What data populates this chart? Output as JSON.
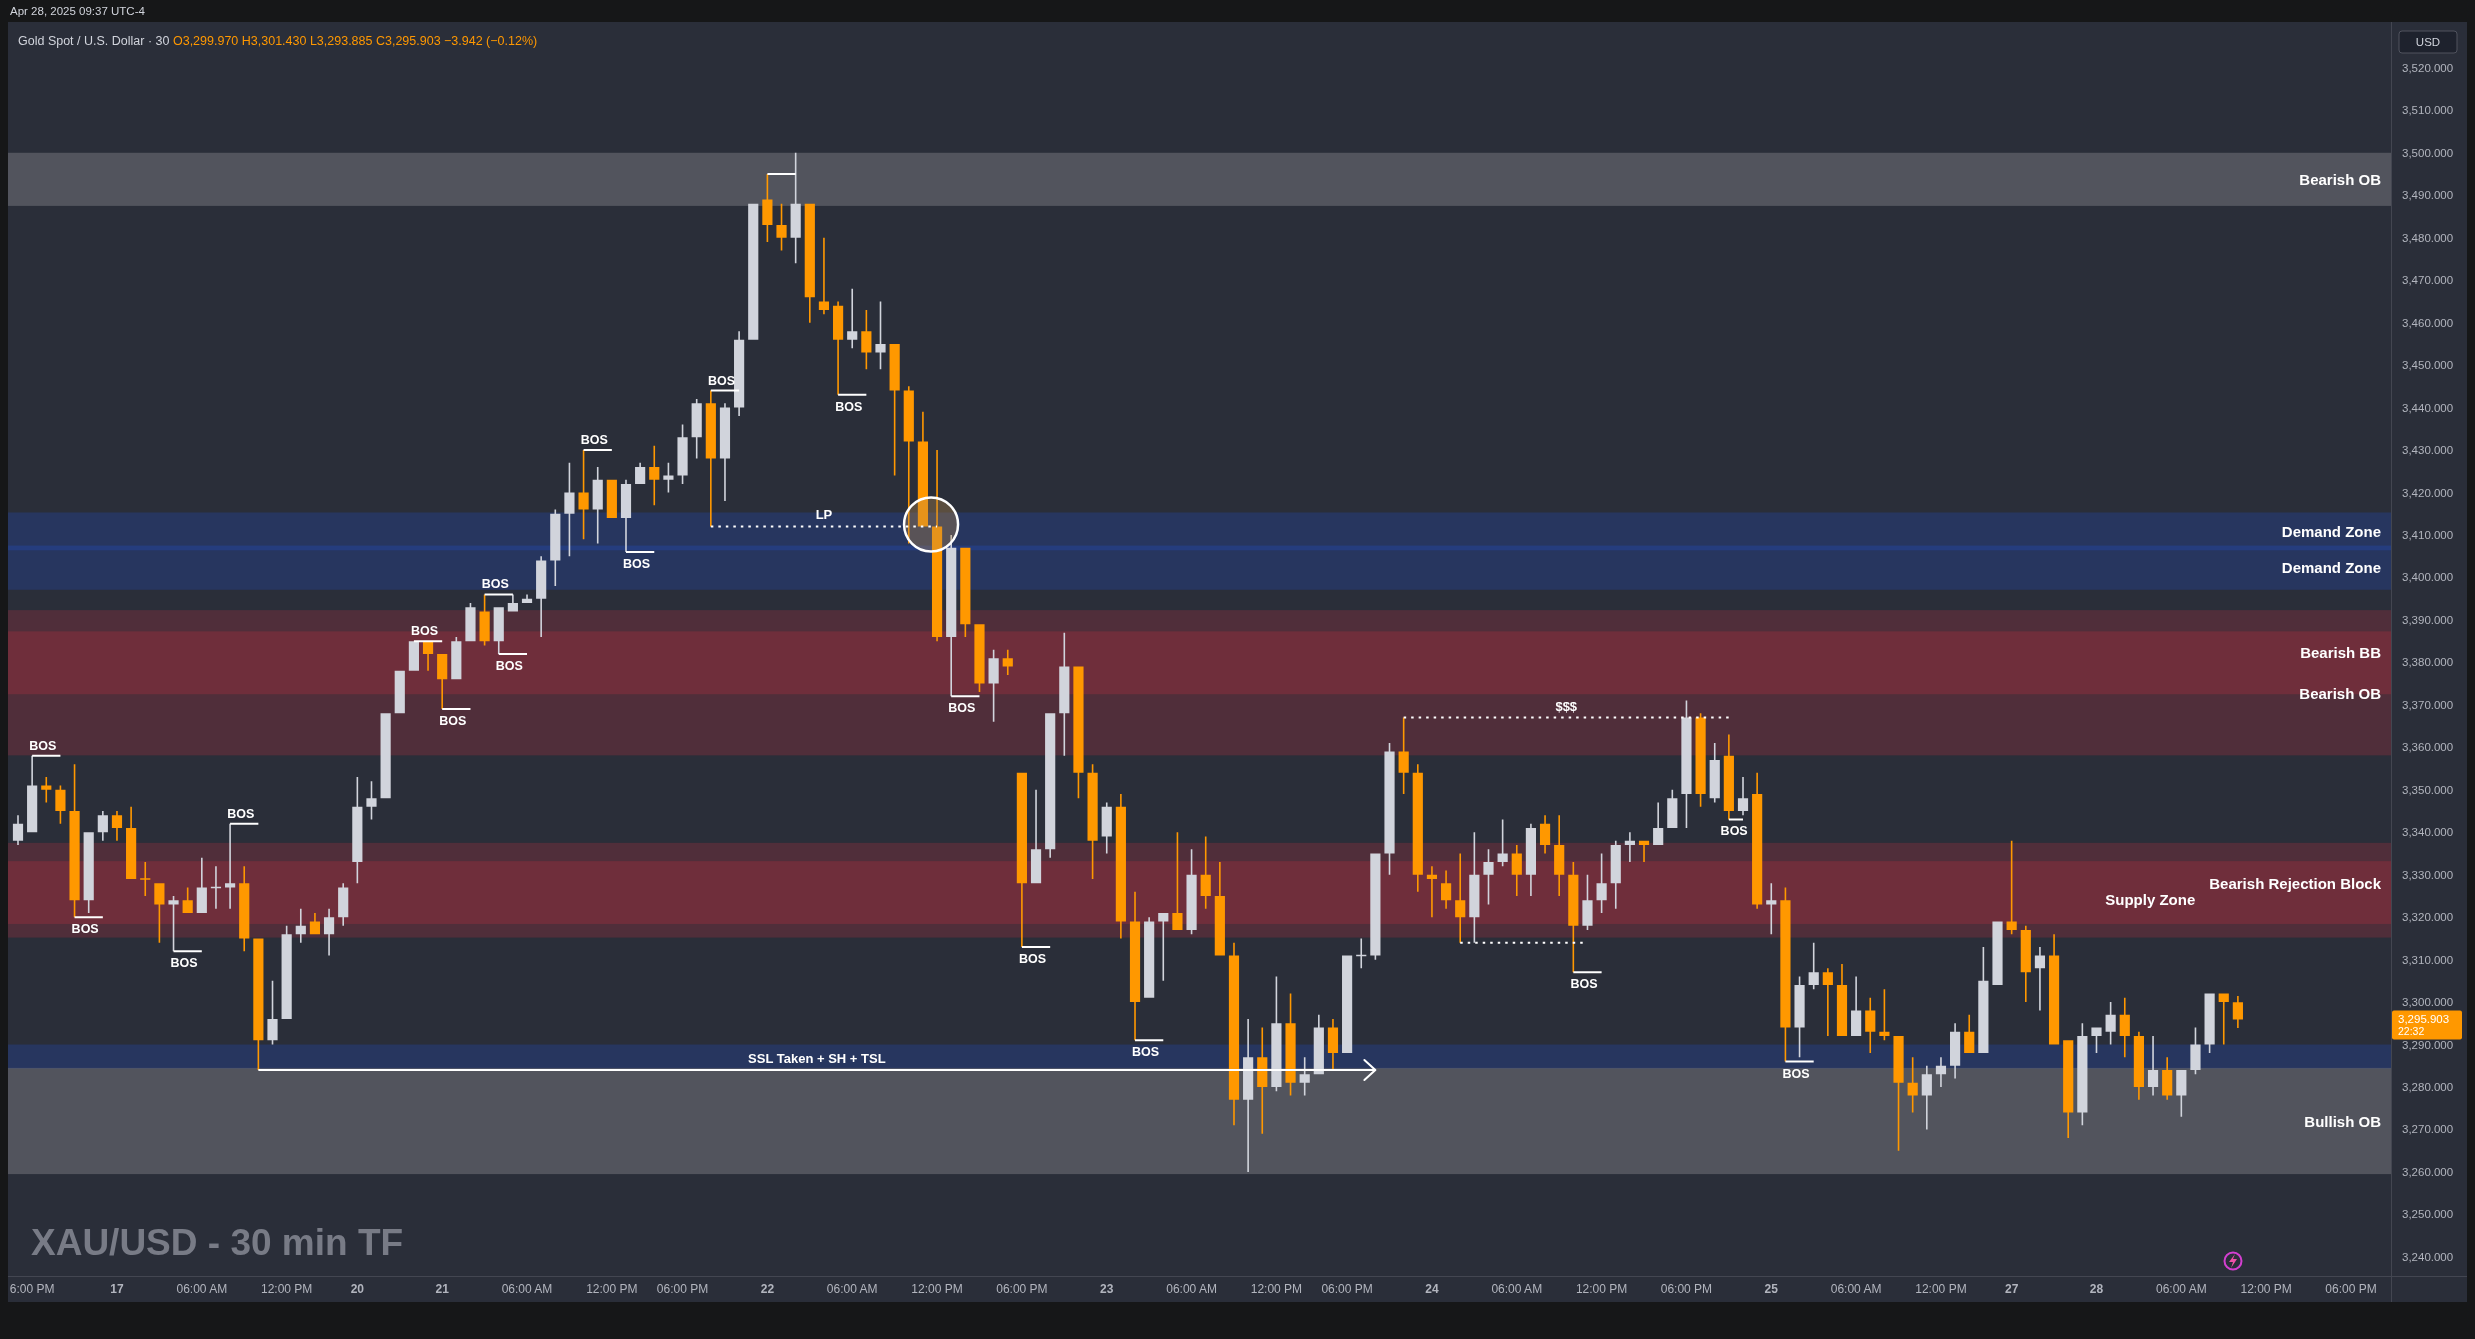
{
  "chart_data": {
    "type": "candlestick",
    "title": "XAU/USD - 30 min TF",
    "subtitle": "Gold Spot / U.S. Dollar · 30 O3,299.970 H3,301.430 L3,293.885 C3,295.903 −3.942 (−0.12%)",
    "ylabel": "USD",
    "categories": [
      null,
      "6:00 PM",
      null,
      null,
      null,
      null,
      null,
      "17",
      null,
      null,
      null,
      null,
      null,
      "06:00 AM",
      null,
      null,
      null,
      null,
      null,
      "12:00 PM",
      null,
      null,
      null,
      null,
      "20",
      null,
      null,
      null,
      null,
      null,
      "21",
      null,
      null,
      null,
      null,
      null,
      "06:00 AM",
      null,
      null,
      null,
      null,
      null,
      "12:00 PM",
      null,
      null,
      null,
      null,
      "06:00 PM",
      null,
      null,
      null,
      null,
      null,
      "22",
      null,
      null,
      null,
      null,
      null,
      "06:00 AM",
      null,
      null,
      null,
      null,
      null,
      "12:00 PM",
      null,
      null,
      null,
      null,
      null,
      "06:00 PM",
      null,
      null,
      null,
      null,
      null,
      "23",
      null,
      null,
      null,
      null,
      null,
      "06:00 AM",
      null,
      null,
      null,
      null,
      null,
      "12:00 PM",
      null,
      null,
      null,
      null,
      "06:00 PM",
      null,
      null,
      null,
      null,
      null,
      "24",
      null,
      null,
      null,
      null,
      null,
      "06:00 AM",
      null,
      null,
      null,
      null,
      null,
      "12:00 PM",
      null,
      null,
      null,
      null,
      null,
      "06:00 PM",
      null,
      null,
      null,
      null,
      null,
      "25",
      null,
      null,
      null,
      null,
      null,
      "06:00 AM",
      null,
      null,
      null,
      null,
      null,
      "12:00 PM",
      null,
      null,
      null,
      null,
      "27",
      null,
      null,
      null,
      null,
      null,
      "28",
      null,
      null,
      null,
      null,
      null,
      "06:00 AM",
      null,
      null,
      null,
      null,
      null,
      "12:00 PM",
      null,
      null,
      null,
      null,
      null,
      "06:00 PM"
    ],
    "ohlc": [
      [
        3338,
        3344,
        3337,
        3342
      ],
      [
        3340,
        3358,
        3340,
        3351
      ],
      [
        3351,
        3353,
        3347,
        3350
      ],
      [
        3350,
        3351,
        3342,
        3345
      ],
      [
        3345,
        3356,
        3320,
        3324
      ],
      [
        3324,
        3340,
        3321,
        3340
      ],
      [
        3340,
        3345,
        3338,
        3344
      ],
      [
        3344,
        3345,
        3338,
        3341
      ],
      [
        3341,
        3346,
        3329,
        3329
      ],
      [
        3329,
        3333,
        3325,
        3329
      ],
      [
        3328,
        3328,
        3314,
        3323
      ],
      [
        3323,
        3325,
        3312,
        3324
      ],
      [
        3324,
        3327,
        3321,
        3321
      ],
      [
        3321,
        3334,
        3321,
        3327
      ],
      [
        3327,
        3332,
        3322,
        3327
      ],
      [
        3327,
        3342,
        3322,
        3328
      ],
      [
        3328,
        3332,
        3312,
        3315
      ],
      [
        3315,
        3315,
        3284,
        3291
      ],
      [
        3291,
        3305,
        3290,
        3296
      ],
      [
        3296,
        3318,
        3296,
        3316
      ],
      [
        3316,
        3322,
        3314,
        3318
      ],
      [
        3319,
        3321,
        3316,
        3316
      ],
      [
        3316,
        3322,
        3311,
        3320
      ],
      [
        3320,
        3328,
        3318,
        3327
      ],
      [
        3333,
        3353,
        3328,
        3346
      ],
      [
        3346,
        3352,
        3343,
        3348
      ],
      [
        3348,
        3368,
        3348,
        3368
      ],
      [
        3368,
        3378,
        3368,
        3378
      ],
      [
        3378,
        3385,
        3378,
        3385
      ],
      [
        3385,
        3385,
        3378,
        3382
      ],
      [
        3382,
        3382,
        3369,
        3376
      ],
      [
        3376,
        3386,
        3376,
        3385
      ],
      [
        3385,
        3394,
        3385,
        3393
      ],
      [
        3392,
        3396,
        3384,
        3385
      ],
      [
        3385,
        3393,
        3382,
        3393
      ],
      [
        3392,
        3396,
        3392,
        3394
      ],
      [
        3394,
        3396,
        3394,
        3395
      ],
      [
        3395,
        3405,
        3386,
        3404
      ],
      [
        3404,
        3416,
        3398,
        3415
      ],
      [
        3415,
        3427,
        3405,
        3420
      ],
      [
        3420,
        3430,
        3409,
        3416
      ],
      [
        3416,
        3426,
        3408,
        3423
      ],
      [
        3423,
        3423,
        3414,
        3414
      ],
      [
        3414,
        3423,
        3406,
        3422
      ],
      [
        3422,
        3427,
        3422,
        3426
      ],
      [
        3426,
        3431,
        3417,
        3423
      ],
      [
        3423,
        3427,
        3420,
        3424
      ],
      [
        3424,
        3436,
        3422,
        3433
      ],
      [
        3433,
        3442,
        3428,
        3441
      ],
      [
        3441,
        3444,
        3412,
        3428
      ],
      [
        3428,
        3441,
        3418,
        3440
      ],
      [
        3440,
        3458,
        3438,
        3456
      ],
      [
        3456,
        3488,
        3456,
        3488
      ],
      [
        3489,
        3495,
        3479,
        3483
      ],
      [
        3483,
        3488,
        3477,
        3480
      ],
      [
        3480,
        3500,
        3474,
        3488
      ],
      [
        3488,
        3488,
        3460,
        3466
      ],
      [
        3465,
        3480,
        3462,
        3463
      ],
      [
        3464,
        3465,
        3443,
        3456
      ],
      [
        3456,
        3468,
        3454,
        3458
      ],
      [
        3458,
        3463,
        3449,
        3453
      ],
      [
        3453,
        3465,
        3449,
        3455
      ],
      [
        3455,
        3455,
        3424,
        3444
      ],
      [
        3444,
        3445,
        3408,
        3432
      ],
      [
        3432,
        3439,
        3412,
        3412
      ],
      [
        3412,
        3430,
        3385,
        3386
      ],
      [
        3386,
        3410,
        3372,
        3407
      ],
      [
        3407,
        3407,
        3386,
        3389
      ],
      [
        3389,
        3389,
        3373,
        3375
      ],
      [
        3375,
        3383,
        3366,
        3381
      ],
      [
        3381,
        3383,
        3377,
        3379
      ],
      [
        3354,
        3354,
        3313,
        3328
      ],
      [
        3328,
        3350,
        3328,
        3336
      ],
      [
        3336,
        3368,
        3334,
        3368
      ],
      [
        3368,
        3387,
        3358,
        3379
      ],
      [
        3379,
        3379,
        3348,
        3354
      ],
      [
        3354,
        3356,
        3329,
        3338
      ],
      [
        3339,
        3347,
        3335,
        3346
      ],
      [
        3346,
        3349,
        3315,
        3319
      ],
      [
        3319,
        3326,
        3291,
        3300
      ],
      [
        3301,
        3320,
        3301,
        3319
      ],
      [
        3319,
        3321,
        3305,
        3321
      ],
      [
        3321,
        3340,
        3317,
        3317
      ],
      [
        3317,
        3336,
        3316,
        3330
      ],
      [
        3330,
        3339,
        3322,
        3325
      ],
      [
        3325,
        3333,
        3311,
        3311
      ],
      [
        3311,
        3314,
        3271,
        3277
      ],
      [
        3277,
        3296,
        3260,
        3287
      ],
      [
        3287,
        3294,
        3269,
        3280
      ],
      [
        3280,
        3306,
        3279,
        3295
      ],
      [
        3295,
        3302,
        3278,
        3281
      ],
      [
        3281,
        3287,
        3278,
        3283
      ],
      [
        3283,
        3297,
        3283,
        3294
      ],
      [
        3294,
        3296,
        3284,
        3288
      ],
      [
        3288,
        3311,
        3288,
        3311
      ],
      [
        3311,
        3315,
        3308,
        3311
      ],
      [
        3311,
        3335,
        3310,
        3335
      ],
      [
        3335,
        3361,
        3330,
        3359
      ],
      [
        3359,
        3367,
        3349,
        3354
      ],
      [
        3354,
        3356,
        3326,
        3330
      ],
      [
        3330,
        3332,
        3320,
        3329
      ],
      [
        3328,
        3331,
        3322,
        3324
      ],
      [
        3324,
        3335,
        3314,
        3320
      ],
      [
        3320,
        3340,
        3314,
        3330
      ],
      [
        3330,
        3336,
        3323,
        3333
      ],
      [
        3333,
        3343,
        3332,
        3335
      ],
      [
        3335,
        3337,
        3325,
        3330
      ],
      [
        3330,
        3342,
        3325,
        3341
      ],
      [
        3342,
        3344,
        3335,
        3337
      ],
      [
        3337,
        3344,
        3325,
        3330
      ],
      [
        3330,
        3333,
        3307,
        3318
      ],
      [
        3318,
        3330,
        3317,
        3324
      ],
      [
        3324,
        3335,
        3321,
        3328
      ],
      [
        3328,
        3338,
        3322,
        3337
      ],
      [
        3337,
        3340,
        3333,
        3338
      ],
      [
        3338,
        3338,
        3333,
        3337
      ],
      [
        3337,
        3347,
        3337,
        3341
      ],
      [
        3341,
        3350,
        3341,
        3348
      ],
      [
        3349,
        3371,
        3341,
        3367
      ],
      [
        3367,
        3368,
        3346,
        3349
      ],
      [
        3348,
        3361,
        3347,
        3357
      ],
      [
        3358,
        3363,
        3343,
        3345
      ],
      [
        3345,
        3353,
        3344,
        3348
      ],
      [
        3349,
        3354,
        3322,
        3323
      ],
      [
        3323,
        3328,
        3316,
        3324
      ],
      [
        3324,
        3327,
        3286,
        3294
      ],
      [
        3294,
        3306,
        3287,
        3304
      ],
      [
        3304,
        3314,
        3303,
        3307
      ],
      [
        3307,
        3308,
        3292,
        3304
      ],
      [
        3304,
        3309,
        3292,
        3292
      ],
      [
        3292,
        3306,
        3292,
        3298
      ],
      [
        3298,
        3301,
        3288,
        3293
      ],
      [
        3293,
        3303,
        3291,
        3292
      ],
      [
        3292,
        3292,
        3265,
        3281
      ],
      [
        3281,
        3287,
        3274,
        3278
      ],
      [
        3278,
        3285,
        3270,
        3283
      ],
      [
        3283,
        3287,
        3280,
        3285
      ],
      [
        3285,
        3295,
        3282,
        3293
      ],
      [
        3293,
        3297,
        3288,
        3288
      ],
      [
        3288,
        3313,
        3288,
        3305
      ],
      [
        3304,
        3319,
        3304,
        3319
      ],
      [
        3319,
        3338,
        3316,
        3317
      ],
      [
        3317,
        3318,
        3300,
        3307
      ],
      [
        3308,
        3313,
        3298,
        3311
      ],
      [
        3311,
        3316,
        3290,
        3290
      ],
      [
        3291,
        3291,
        3268,
        3274
      ],
      [
        3274,
        3295,
        3271,
        3292
      ],
      [
        3292,
        3294,
        3288,
        3294
      ],
      [
        3293,
        3300,
        3290,
        3297
      ],
      [
        3297,
        3301,
        3287,
        3292
      ],
      [
        3292,
        3293,
        3277,
        3280
      ],
      [
        3280,
        3292,
        3278,
        3284
      ],
      [
        3284,
        3287,
        3277,
        3278
      ],
      [
        3278,
        3284,
        3273,
        3284
      ],
      [
        3284,
        3294,
        3283,
        3290
      ],
      [
        3290,
        3302,
        3288,
        3302
      ],
      [
        3302,
        3302,
        3290,
        3300
      ],
      [
        3299.97,
        3301.43,
        3293.885,
        3295.903
      ],
      null,
      null,
      null,
      null,
      null,
      null,
      null,
      null
    ],
    "colors": [
      "#d1d4dc",
      "#d1d4dc",
      "#ff9800",
      "#ff9800",
      "#ff9800",
      "#d1d4dc",
      "#d1d4dc",
      "#ff9800",
      "#ff9800",
      "#ff9800",
      "#ff9800",
      "#d1d4dc",
      "#ff9800",
      "#d1d4dc",
      "#d1d4dc",
      "#d1d4dc",
      "#ff9800",
      "#ff9800",
      "#d1d4dc",
      "#d1d4dc",
      "#d1d4dc",
      "#ff9800",
      "#d1d4dc",
      "#d1d4dc",
      "#d1d4dc",
      "#d1d4dc",
      "#d1d4dc",
      "#d1d4dc",
      "#d1d4dc",
      "#ff9800",
      "#ff9800",
      "#d1d4dc",
      "#d1d4dc",
      "#ff9800",
      "#d1d4dc",
      "#d1d4dc",
      "#d1d4dc",
      "#d1d4dc",
      "#d1d4dc",
      "#d1d4dc",
      "#ff9800",
      "#d1d4dc",
      "#ff9800",
      "#d1d4dc",
      "#d1d4dc",
      "#ff9800",
      "#d1d4dc",
      "#d1d4dc",
      "#d1d4dc",
      "#ff9800",
      "#d1d4dc",
      "#d1d4dc",
      "#d1d4dc",
      "#ff9800",
      "#ff9800",
      "#d1d4dc",
      "#ff9800",
      "#ff9800",
      "#ff9800",
      "#d1d4dc",
      "#ff9800",
      "#d1d4dc",
      "#ff9800",
      "#ff9800",
      "#ff9800",
      "#ff9800",
      "#d1d4dc",
      "#ff9800",
      "#ff9800",
      "#d1d4dc",
      "#ff9800",
      "#ff9800",
      "#d1d4dc",
      "#d1d4dc",
      "#d1d4dc",
      "#ff9800",
      "#ff9800",
      "#d1d4dc",
      "#ff9800",
      "#ff9800",
      "#d1d4dc",
      "#d1d4dc",
      "#ff9800",
      "#d1d4dc",
      "#ff9800",
      "#ff9800",
      "#ff9800",
      "#d1d4dc",
      "#ff9800",
      "#d1d4dc",
      "#ff9800",
      "#d1d4dc",
      "#d1d4dc",
      "#ff9800",
      "#d1d4dc",
      "#d1d4dc",
      "#d1d4dc",
      "#d1d4dc",
      "#ff9800",
      "#ff9800",
      "#ff9800",
      "#ff9800",
      "#ff9800",
      "#d1d4dc",
      "#d1d4dc",
      "#d1d4dc",
      "#ff9800",
      "#d1d4dc",
      "#ff9800",
      "#ff9800",
      "#ff9800",
      "#d1d4dc",
      "#d1d4dc",
      "#d1d4dc",
      "#d1d4dc",
      "#ff9800",
      "#d1d4dc",
      "#d1d4dc",
      "#d1d4dc",
      "#ff9800",
      "#d1d4dc",
      "#ff9800",
      "#d1d4dc",
      "#ff9800",
      "#d1d4dc",
      "#ff9800",
      "#d1d4dc",
      "#d1d4dc",
      "#ff9800",
      "#ff9800",
      "#d1d4dc",
      "#ff9800",
      "#ff9800",
      "#ff9800",
      "#ff9800",
      "#d1d4dc",
      "#d1d4dc",
      "#d1d4dc",
      "#ff9800",
      "#d1d4dc",
      "#d1d4dc",
      "#ff9800",
      "#ff9800",
      "#d1d4dc",
      "#ff9800",
      "#ff9800",
      "#d1d4dc",
      "#d1d4dc",
      "#d1d4dc",
      "#ff9800",
      "#ff9800",
      "#d1d4dc",
      "#ff9800",
      "#d1d4dc",
      "#d1d4dc",
      "#d1d4dc",
      "#ff9800",
      "#ff9800",
      null,
      null,
      null,
      null,
      null,
      null,
      null,
      null
    ],
    "series": [
      {
        "type": "line",
        "name": "SSL Taken + SH + TSL",
        "color": "#ffffff",
        "line_style": "solid",
        "values": [
          null,
          null,
          null,
          null,
          null,
          null,
          null,
          null,
          null,
          null,
          null,
          null,
          null,
          null,
          null,
          null,
          null,
          3284,
          3284,
          3284,
          3284,
          3284,
          3284,
          3284,
          3284,
          3284,
          3284,
          3284,
          3284,
          3284,
          3284,
          3284,
          3284,
          3284,
          3284,
          3284,
          3284,
          3284,
          3284,
          3284,
          3284,
          3284,
          3284,
          3284,
          3284,
          3284,
          3284,
          3284,
          3284,
          3284,
          3284,
          3284,
          3284,
          3284,
          3284,
          3284,
          3284,
          3284,
          3284,
          3284,
          3284,
          3284,
          3284,
          3284,
          3284,
          3284,
          3284,
          3284,
          3284,
          3284,
          3284,
          3284,
          3284,
          3284,
          3284,
          3284,
          3284,
          3284,
          3284,
          3284,
          3284,
          3284,
          3284,
          3284,
          3284,
          3284,
          3284,
          3284,
          3284,
          3284,
          3284,
          3284,
          3284,
          3284,
          3284,
          3284,
          3284,
          null,
          null,
          null,
          null,
          null,
          null,
          null,
          null,
          null,
          null,
          null,
          null,
          null,
          null,
          null,
          null,
          null,
          null,
          null,
          null,
          null,
          null,
          null,
          null,
          null,
          null,
          null,
          null,
          null,
          null,
          null,
          null,
          null,
          null,
          null,
          null,
          null,
          null,
          null,
          null,
          null,
          null,
          null,
          null,
          null,
          null,
          null,
          null,
          null,
          null,
          null,
          null,
          null,
          null,
          null,
          null,
          null,
          null,
          null,
          null,
          null,
          null,
          null,
          null,
          null,
          null,
          null,
          null,
          null
        ]
      },
      {
        "type": "line",
        "name": "LP",
        "color": "#ffffff",
        "line_style": "dotted",
        "values": [
          null,
          null,
          null,
          null,
          null,
          null,
          null,
          null,
          null,
          null,
          null,
          null,
          null,
          null,
          null,
          null,
          null,
          null,
          null,
          null,
          null,
          null,
          null,
          null,
          null,
          null,
          null,
          null,
          null,
          null,
          null,
          null,
          null,
          null,
          null,
          null,
          null,
          null,
          null,
          null,
          null,
          null,
          null,
          null,
          null,
          null,
          null,
          null,
          null,
          3412,
          3412,
          3412,
          3412,
          3412,
          3412,
          3412,
          3412,
          3412,
          3412,
          3412,
          3412,
          3412,
          3412,
          3412,
          3412,
          3412,
          null,
          null,
          null,
          null,
          null,
          null,
          null,
          null,
          null,
          null,
          null,
          null,
          null,
          null,
          null,
          null,
          null,
          null,
          null,
          null,
          null,
          null,
          null,
          null,
          null,
          null,
          null,
          null,
          null,
          null,
          null,
          null,
          null,
          null,
          null,
          null,
          null,
          null,
          null,
          null,
          null,
          null,
          null,
          null,
          null,
          null,
          null,
          null,
          null,
          null,
          null,
          null,
          null,
          null,
          null,
          null,
          null,
          null,
          null,
          null,
          null,
          null,
          null,
          null,
          null,
          null,
          null,
          null,
          null,
          null,
          null,
          null,
          null,
          null,
          null,
          null,
          null,
          null,
          null,
          null,
          null,
          null,
          null,
          null,
          null,
          null,
          null,
          null,
          null,
          null,
          null,
          null,
          null,
          null,
          null,
          null,
          null,
          null,
          null,
          null
        ]
      },
      {
        "type": "line",
        "name": "$$$",
        "color": "#ffffff",
        "line_style": "dotted",
        "values": [
          null,
          null,
          null,
          null,
          null,
          null,
          null,
          null,
          null,
          null,
          null,
          null,
          null,
          null,
          null,
          null,
          null,
          null,
          null,
          null,
          null,
          null,
          null,
          null,
          null,
          null,
          null,
          null,
          null,
          null,
          null,
          null,
          null,
          null,
          null,
          null,
          null,
          null,
          null,
          null,
          null,
          null,
          null,
          null,
          null,
          null,
          null,
          null,
          null,
          null,
          null,
          null,
          null,
          null,
          null,
          null,
          null,
          null,
          null,
          null,
          null,
          null,
          null,
          null,
          null,
          null,
          null,
          null,
          null,
          null,
          null,
          null,
          null,
          null,
          null,
          null,
          null,
          null,
          null,
          null,
          null,
          null,
          null,
          null,
          null,
          null,
          null,
          null,
          null,
          null,
          null,
          null,
          null,
          null,
          null,
          null,
          null,
          null,
          3367,
          3367,
          3367,
          3367,
          3367,
          3367,
          3367,
          3367,
          3367,
          3367,
          3367,
          3367,
          3367,
          3367,
          3367,
          3367,
          3367,
          3367,
          3367,
          3367,
          3367,
          3367,
          3367,
          3367,
          null,
          null,
          null,
          null,
          null,
          null,
          null,
          null,
          null,
          null,
          null,
          null,
          null,
          null,
          null,
          null,
          null,
          null,
          null,
          null,
          null,
          null,
          null,
          null,
          null,
          null,
          null,
          null,
          null,
          null,
          null,
          null,
          null,
          null,
          null,
          null,
          null,
          null,
          null,
          null,
          null,
          null,
          null,
          null
        ]
      },
      {
        "type": "line",
        "color": "#ffffff",
        "line_style": "dotted",
        "values": [
          null,
          null,
          null,
          null,
          null,
          null,
          null,
          null,
          null,
          null,
          null,
          null,
          null,
          null,
          null,
          null,
          null,
          null,
          null,
          null,
          null,
          null,
          null,
          null,
          null,
          null,
          null,
          null,
          null,
          null,
          null,
          null,
          null,
          null,
          null,
          null,
          null,
          null,
          null,
          null,
          null,
          null,
          null,
          null,
          null,
          null,
          null,
          null,
          null,
          null,
          null,
          null,
          null,
          null,
          null,
          null,
          null,
          null,
          null,
          null,
          null,
          null,
          null,
          null,
          null,
          null,
          null,
          null,
          null,
          null,
          null,
          null,
          null,
          null,
          null,
          null,
          null,
          null,
          null,
          null,
          null,
          null,
          null,
          null,
          null,
          null,
          null,
          null,
          null,
          null,
          null,
          null,
          null,
          null,
          null,
          null,
          null,
          null,
          null,
          null,
          null,
          null,
          3314,
          3314,
          3314,
          3314,
          3314,
          3314,
          3314,
          3314,
          3314,
          3314,
          null,
          null,
          null,
          null,
          null,
          null,
          null,
          null,
          null,
          null,
          null,
          null,
          null,
          null,
          null,
          null,
          null,
          null,
          null,
          null,
          null,
          null,
          null,
          null,
          null,
          null,
          null,
          null,
          null,
          null,
          null,
          null,
          null,
          null,
          null,
          null,
          null,
          null,
          null,
          null,
          null,
          null,
          null,
          null,
          null,
          null,
          null,
          null,
          null,
          null,
          null,
          null,
          null,
          null
        ]
      },
      {
        "type": "line",
        "color": "#ffffff",
        "line_style": "solid",
        "values": [
          null,
          null,
          null,
          null,
          null,
          null,
          null,
          null,
          null,
          null,
          null,
          null,
          null,
          null,
          null,
          null,
          null,
          null,
          null,
          null,
          null,
          null,
          null,
          null,
          null,
          null,
          null,
          null,
          null,
          null,
          null,
          null,
          null,
          null,
          null,
          null,
          null,
          null,
          null,
          null,
          null,
          null,
          null,
          null,
          null,
          null,
          null,
          null,
          null,
          null,
          null,
          null,
          null,
          3495,
          3495,
          3495,
          null,
          null,
          null,
          null,
          null,
          null,
          null,
          null,
          null,
          null,
          null,
          null,
          null,
          null,
          null,
          null,
          null,
          null,
          null,
          null,
          null,
          null,
          null,
          null,
          null,
          null,
          null,
          null,
          null,
          null,
          null,
          null,
          null,
          null,
          null,
          null,
          null,
          null,
          null,
          null,
          null,
          null,
          null,
          null,
          null,
          null,
          null,
          null,
          null,
          null,
          null,
          null,
          null,
          null,
          null,
          null,
          null,
          null,
          null,
          null,
          null,
          null,
          null,
          null,
          null,
          null,
          null,
          null,
          null,
          null,
          null,
          null,
          null,
          null,
          null,
          null,
          null,
          null,
          null,
          null,
          null,
          null,
          null,
          null,
          null,
          null,
          null,
          null,
          null,
          null,
          null,
          null,
          null,
          null,
          null,
          null,
          null,
          null,
          null,
          null,
          null,
          null,
          null,
          null,
          null,
          null,
          null,
          null,
          null,
          null
        ]
      },
      {
        "type": "line",
        "name": "BOS",
        "color": "#ffffff",
        "line_style": "solid",
        "values": [
          null,
          3358,
          3358,
          3358,
          null,
          null,
          null,
          null,
          null,
          null,
          null,
          3312,
          3312,
          3312,
          null,
          null,
          null,
          null,
          null,
          null,
          null,
          null,
          null,
          null,
          null,
          null,
          null,
          null,
          3385,
          3385,
          3385,
          null,
          null,
          3396,
          3396,
          3396,
          null,
          null,
          null,
          null,
          3430,
          3430,
          3430,
          null,
          null,
          null,
          null,
          null,
          null,
          3444,
          3444,
          3444,
          null,
          null,
          null,
          null,
          null,
          null,
          null,
          null,
          null,
          null,
          null,
          null,
          null,
          null,
          3372,
          3372,
          3372,
          null,
          null,
          null,
          null,
          null,
          null,
          null,
          null,
          null,
          null,
          3291,
          3291,
          3291,
          null,
          null,
          null,
          null,
          null,
          null,
          null,
          null,
          null,
          null,
          null,
          null,
          null,
          null,
          null,
          null,
          null,
          null,
          null,
          null,
          null,
          null,
          null,
          null,
          null,
          null,
          null,
          null,
          null,
          null,
          null,
          null,
          null,
          null,
          null,
          null,
          null,
          null,
          null,
          3343,
          3343,
          null,
          null,
          null,
          null,
          null,
          null,
          null,
          null,
          null,
          null,
          null,
          null,
          null,
          null,
          null,
          null,
          null,
          null,
          null,
          null,
          null,
          null,
          null,
          null,
          null,
          null,
          null,
          null,
          null,
          null,
          null,
          null,
          null,
          null,
          null,
          null,
          null,
          null,
          null,
          null,
          null,
          null,
          null
        ]
      },
      {
        "type": "line",
        "name": "BOS",
        "color": "#ffffff",
        "line_style": "solid",
        "values": [
          null,
          null,
          null,
          null,
          3320,
          3320,
          3320,
          null,
          null,
          null,
          null,
          null,
          null,
          null,
          null,
          3342,
          3342,
          3342,
          null,
          null,
          null,
          null,
          null,
          null,
          null,
          null,
          null,
          null,
          null,
          null,
          3369,
          3369,
          3369,
          null,
          3382,
          3382,
          3382,
          null,
          null,
          null,
          null,
          null,
          null,
          3406,
          3406,
          3406,
          null,
          null,
          null,
          null,
          null,
          null,
          null,
          null,
          null,
          null,
          null,
          null,
          3443,
          3443,
          3443,
          null,
          null,
          null,
          null,
          null,
          null,
          null,
          null,
          null,
          null,
          3313,
          3313,
          3313,
          null,
          null,
          null,
          null,
          null,
          null,
          null,
          null,
          null,
          null,
          null,
          null,
          null,
          null,
          null,
          null,
          null,
          null,
          null,
          null,
          null,
          null,
          null,
          null,
          null,
          null,
          null,
          null,
          null,
          null,
          null,
          null,
          null,
          null,
          null,
          null,
          3307,
          3307,
          3307,
          null,
          null,
          null,
          null,
          null,
          null,
          null,
          null,
          null,
          null,
          null,
          null,
          3286,
          3286,
          3286,
          null,
          null,
          null,
          null,
          null,
          null,
          null,
          null,
          null,
          null,
          null,
          null,
          null,
          null,
          null,
          null,
          null,
          null,
          null,
          null,
          null,
          null,
          null,
          null,
          null,
          null,
          null,
          null,
          null,
          null,
          null,
          null,
          null,
          null,
          null,
          null,
          null,
          null
        ]
      }
    ],
    "ylim": [
      3235.5,
      3530.8
    ],
    "yticks": [
      {
        "value": 3240,
        "label": "3,240.000"
      },
      {
        "value": 3250,
        "label": "3,250.000"
      },
      {
        "value": 3260,
        "label": "3,260.000"
      },
      {
        "value": 3270,
        "label": "3,270.000"
      },
      {
        "value": 3280,
        "label": "3,280.000"
      },
      {
        "value": 3290,
        "label": "3,290.000"
      },
      {
        "value": 3300,
        "label": "3,300.000"
      },
      {
        "value": 3310,
        "label": "3,310.000"
      },
      {
        "value": 3320,
        "label": "3,320.000"
      },
      {
        "value": 3330,
        "label": "3,330.000"
      },
      {
        "value": 3340,
        "label": "3,340.000"
      },
      {
        "value": 3350,
        "label": "3,350.000"
      },
      {
        "value": 3360,
        "label": "3,360.000"
      },
      {
        "value": 3370,
        "label": "3,370.000"
      },
      {
        "value": 3380,
        "label": "3,380.000"
      },
      {
        "value": 3390,
        "label": "3,390.000"
      },
      {
        "value": 3400,
        "label": "3,400.000"
      },
      {
        "value": 3410,
        "label": "3,410.000"
      },
      {
        "value": 3420,
        "label": "3,420.000"
      },
      {
        "value": 3430,
        "label": "3,430.000"
      },
      {
        "value": 3440,
        "label": "3,440.000"
      },
      {
        "value": 3450,
        "label": "3,450.000"
      },
      {
        "value": 3460,
        "label": "3,460.000"
      },
      {
        "value": 3470,
        "label": "3,470.000"
      },
      {
        "value": 3480,
        "label": "3,480.000"
      },
      {
        "value": 3490,
        "label": "3,490.000"
      },
      {
        "value": 3500,
        "label": "3,500.000"
      },
      {
        "value": 3510,
        "label": "3,510.000"
      },
      {
        "value": 3520,
        "label": "3,520.000"
      }
    ],
    "bands": [
      {
        "axis": "y",
        "from": 3487.5,
        "to": 3500,
        "label": "Bearish OB",
        "color": "#53555e"
      },
      {
        "axis": "y",
        "from": 3358.1,
        "to": 3387.3,
        "label": "Bearish OB",
        "color": "#512f3b"
      },
      {
        "axis": "y",
        "from": 3372.5,
        "to": 3392.3,
        "label": "Bearish BB",
        "color": "#512f3b"
      },
      {
        "axis": "y",
        "from": 3318.4,
        "to": 3337.5,
        "label": "Bearish Rejection Block",
        "color": "#512f3b"
      },
      {
        "axis": "y",
        "from": 3315.2,
        "to": 3333.2,
        "label": "Supply Zone",
        "color": "#512f3b"
      },
      {
        "axis": "y",
        "from": 3259.5,
        "to": 3284.5,
        "label": "Bullish OB",
        "color": "#53555e"
      },
      {
        "axis": "y",
        "from": 3397.1,
        "to": 3407.5,
        "label": "Demand Zone",
        "color": "#283760"
      },
      {
        "axis": "y",
        "from": 3406.4,
        "to": 3415.3,
        "label": "Demand Zone",
        "color": "#283760"
      },
      {
        "axis": "y",
        "from": 3284.4,
        "to": 3290.0,
        "color": "#283760"
      }
    ],
    "annotations": [
      "Apr 28, 2025 09:37 UTC-4",
      "3,295.903",
      "22:32"
    ]
  }
}
